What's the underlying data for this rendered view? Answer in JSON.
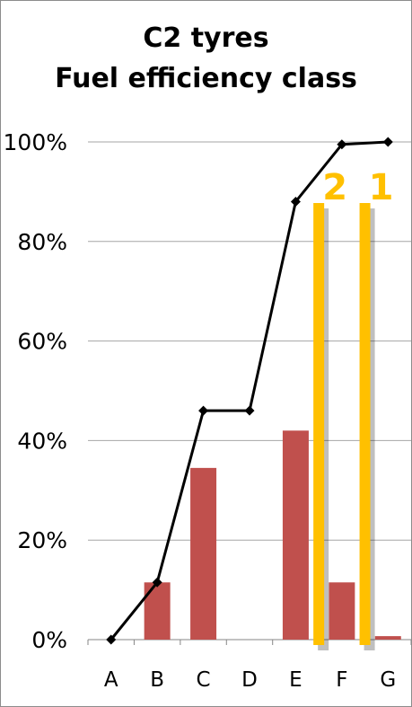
{
  "chart_data": {
    "type": "bar",
    "title": [
      "C2 tyres",
      "Fuel efficiency class"
    ],
    "categories": [
      "A",
      "B",
      "C",
      "D",
      "E",
      "F",
      "G"
    ],
    "bar_values": [
      0,
      11.5,
      34.5,
      0,
      42,
      11.5,
      0.7
    ],
    "cumulative_line": [
      0,
      11.5,
      46,
      46,
      88,
      99.5,
      100
    ],
    "ylim": [
      0,
      100
    ],
    "y_ticks": [
      "0%",
      "20%",
      "40%",
      "60%",
      "80%",
      "100%"
    ],
    "grid": true,
    "colors": {
      "bar": "#c0504d",
      "line": "#000000",
      "marker": "#ffc000",
      "grid": "#a6a6a6"
    },
    "markers": [
      {
        "label": "2",
        "between": [
          "E",
          "F"
        ]
      },
      {
        "label": "1",
        "between": [
          "F",
          "G"
        ]
      }
    ]
  }
}
